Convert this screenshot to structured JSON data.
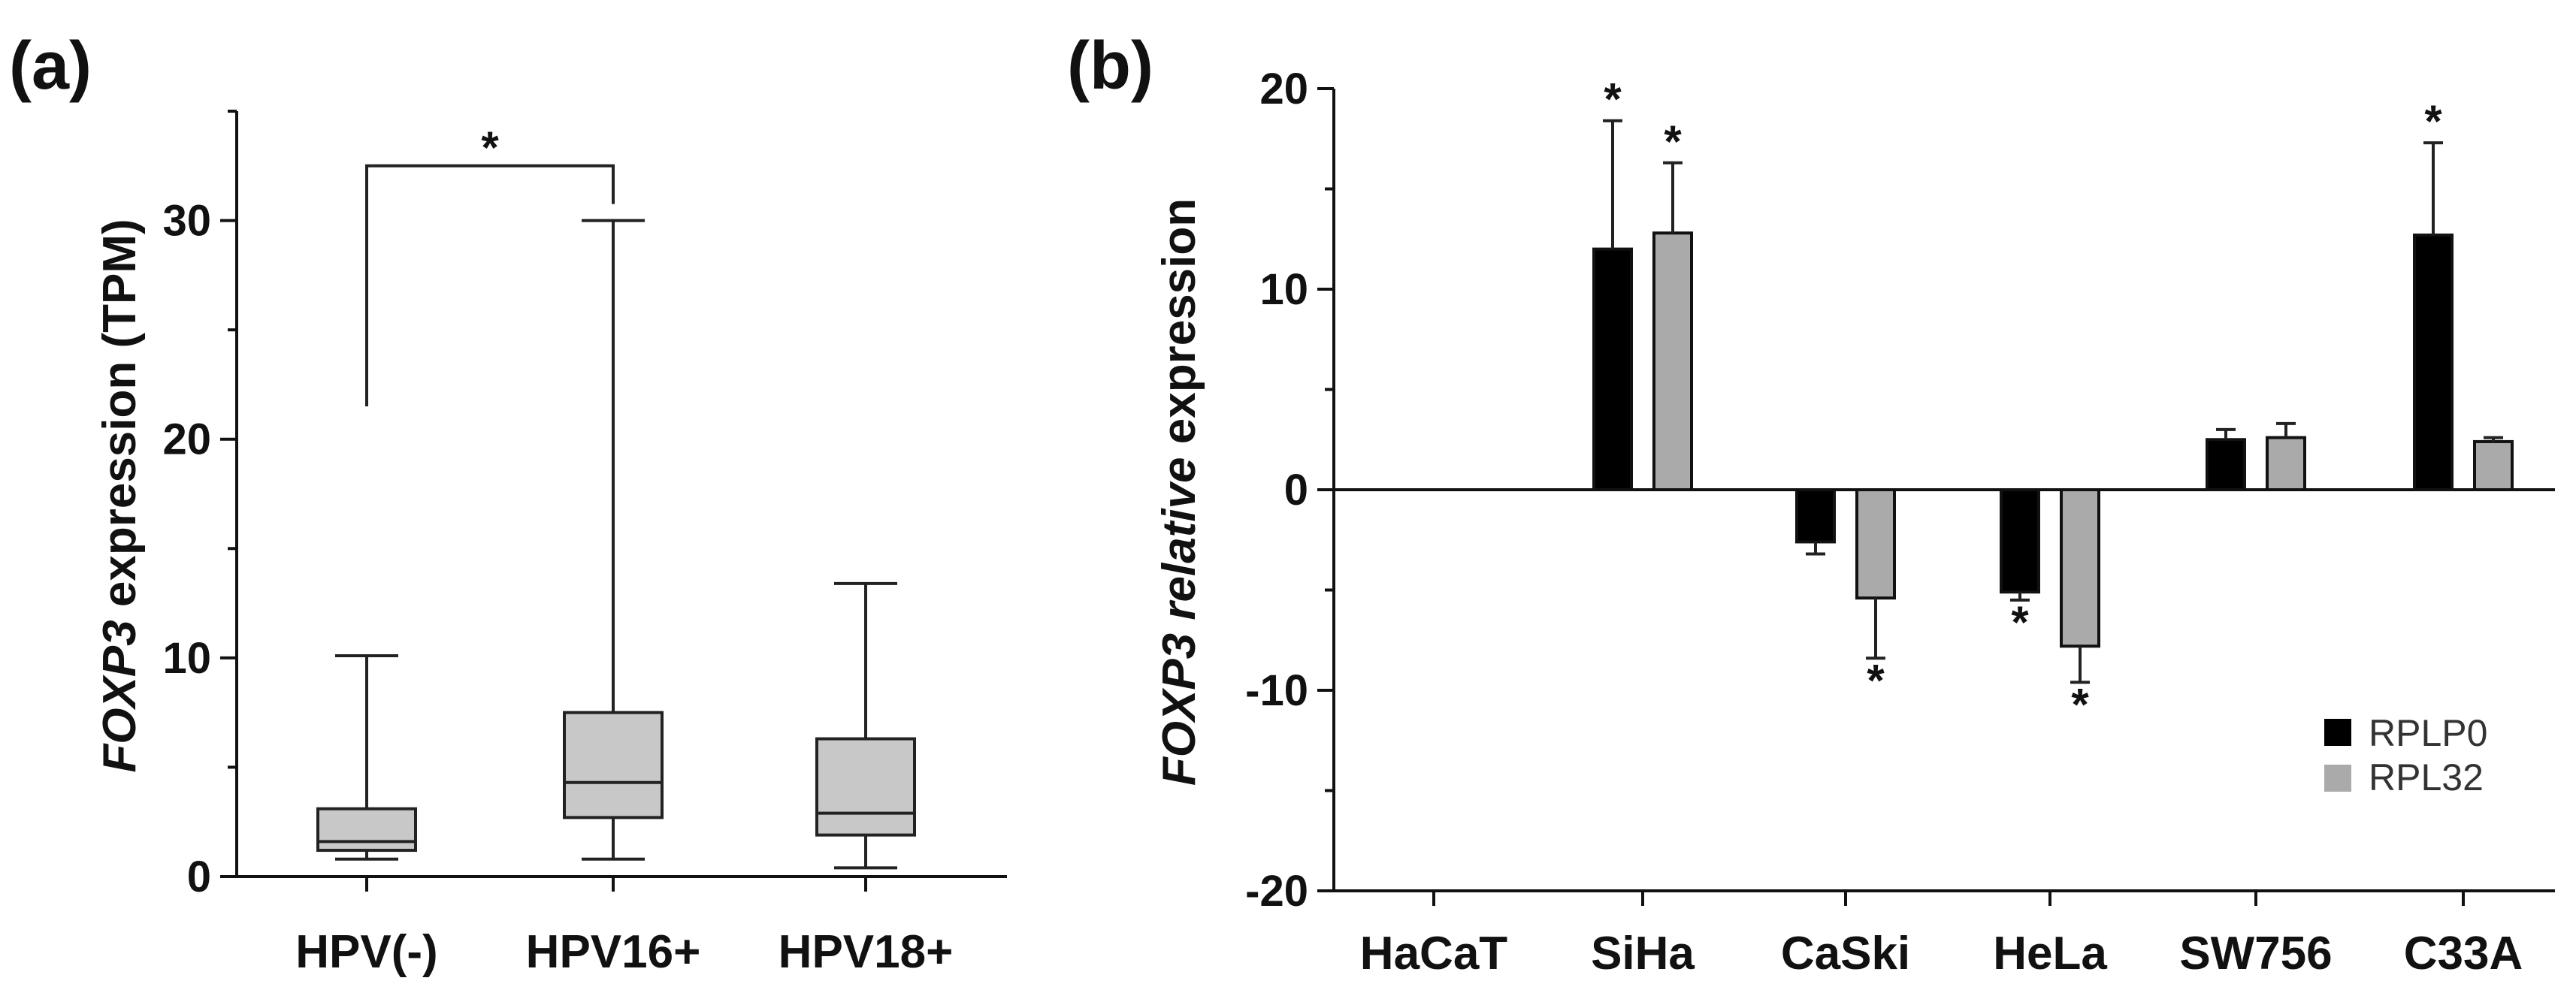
{
  "chart_data": [
    {
      "panel": "(a)",
      "type": "box",
      "ylabel_italic": "FOXP3",
      "ylabel_rest": " expression (TPM)",
      "ylim": [
        0,
        35
      ],
      "yticks": [
        0,
        10,
        20,
        30
      ],
      "yminor": [
        5,
        15,
        25,
        35
      ],
      "categories": [
        "HPV(-)",
        "HPV16+",
        "HPV18+"
      ],
      "boxes": [
        {
          "name": "HPV(-)",
          "min": 0.8,
          "q1": 1.2,
          "median": 1.6,
          "q3": 3.1,
          "max": 10.1
        },
        {
          "name": "HPV16+",
          "min": 0.8,
          "q1": 2.7,
          "median": 4.3,
          "q3": 7.5,
          "max": 30.0
        },
        {
          "name": "HPV18+",
          "min": 0.4,
          "q1": 1.9,
          "median": 2.9,
          "q3": 6.3,
          "max": 13.4
        }
      ],
      "significance": {
        "from": 0,
        "to": 1,
        "label": "*",
        "left_y": 21.5,
        "right_y": 30.0,
        "bracket_y": 32.5
      }
    },
    {
      "panel": "(b)",
      "type": "bar",
      "ylabel_italic": "FOXP3 relative",
      "ylabel_rest": " expression",
      "ylim": [
        -20,
        20
      ],
      "yticks": [
        -20,
        -10,
        0,
        10,
        20
      ],
      "yminor": [
        -15,
        -5,
        5,
        15
      ],
      "categories": [
        "HaCaT",
        "SiHa",
        "CaSki",
        "HeLa",
        "SW756",
        "C33A"
      ],
      "series": [
        {
          "name": "RPLP0",
          "color": "#000000",
          "values": [
            0,
            12.0,
            -2.6,
            -5.1,
            2.5,
            12.7
          ],
          "errors": [
            0,
            6.4,
            0.6,
            0.4,
            0.5,
            4.6
          ],
          "stars": [
            false,
            true,
            false,
            true,
            false,
            true
          ]
        },
        {
          "name": "RPL32",
          "color": "#aaaaaa",
          "values": [
            0,
            12.8,
            -5.4,
            -7.8,
            2.6,
            2.4
          ],
          "errors": [
            0,
            3.5,
            3.0,
            1.8,
            0.7,
            0.2
          ],
          "stars": [
            false,
            true,
            true,
            true,
            false,
            false
          ]
        }
      ],
      "star_label": "*",
      "legend": [
        "RPLP0",
        "RPL32"
      ]
    }
  ]
}
